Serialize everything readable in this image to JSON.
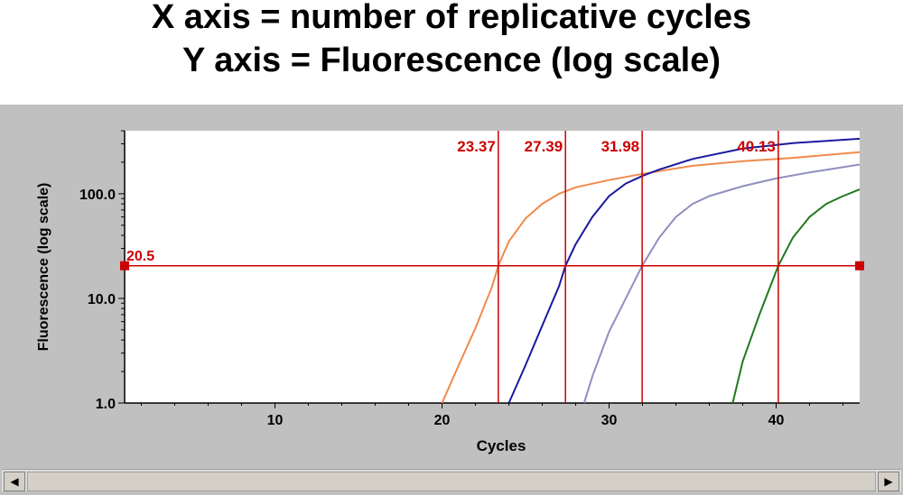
{
  "header": {
    "line1": "X axis = number of replicative cycles",
    "line2": "Y axis = Fluorescence (log scale)"
  },
  "chart_data": {
    "type": "line",
    "title": "",
    "xlabel": "Cycles",
    "ylabel": "Fluorescence (log scale)",
    "xlim": [
      1,
      45
    ],
    "ylim": [
      1.0,
      400
    ],
    "yscale": "log",
    "x_ticks": [
      10,
      20,
      30,
      40
    ],
    "y_ticks": [
      {
        "value": 1,
        "label": "1.0"
      },
      {
        "value": 10,
        "label": "10.0"
      },
      {
        "value": 100,
        "label": "100.0"
      }
    ],
    "grid": false,
    "threshold": {
      "value": 20.5,
      "label": "20.5",
      "color": "#cc0000"
    },
    "ct_markers": [
      {
        "x": 23.37,
        "label": "23.37"
      },
      {
        "x": 27.39,
        "label": "27.39"
      },
      {
        "x": 31.98,
        "label": "31.98"
      },
      {
        "x": 40.13,
        "label": "40.13"
      }
    ],
    "series": [
      {
        "color": "#f08a4b",
        "x": [
          20,
          21,
          22,
          23,
          23.37,
          24,
          25,
          26,
          27,
          28,
          30,
          32,
          35,
          38,
          41,
          45
        ],
        "y": [
          1.0,
          2.3,
          5.2,
          13,
          20.5,
          35,
          58,
          80,
          100,
          115,
          135,
          155,
          185,
          205,
          220,
          250
        ]
      },
      {
        "color": "#1a1a9e",
        "x": [
          24,
          25,
          26,
          27,
          27.39,
          28,
          29,
          30,
          31,
          32,
          33,
          35,
          38,
          41,
          45
        ],
        "y": [
          1.0,
          2.3,
          5.5,
          13,
          20.5,
          33,
          60,
          95,
          125,
          148,
          170,
          215,
          270,
          305,
          335
        ]
      },
      {
        "color": "#8f8fc0",
        "x": [
          28.5,
          29,
          30,
          31,
          31.98,
          33,
          34,
          35,
          36,
          38,
          40,
          42,
          45
        ],
        "y": [
          1.0,
          1.8,
          4.8,
          10,
          20.5,
          38,
          60,
          80,
          95,
          118,
          140,
          160,
          190
        ]
      },
      {
        "color": "#1f7a1f",
        "x": [
          37.4,
          38,
          39,
          40.13,
          41,
          42,
          43,
          44,
          45
        ],
        "y": [
          1.0,
          2.5,
          7,
          20.5,
          38,
          60,
          80,
          95,
          110
        ]
      }
    ]
  }
}
